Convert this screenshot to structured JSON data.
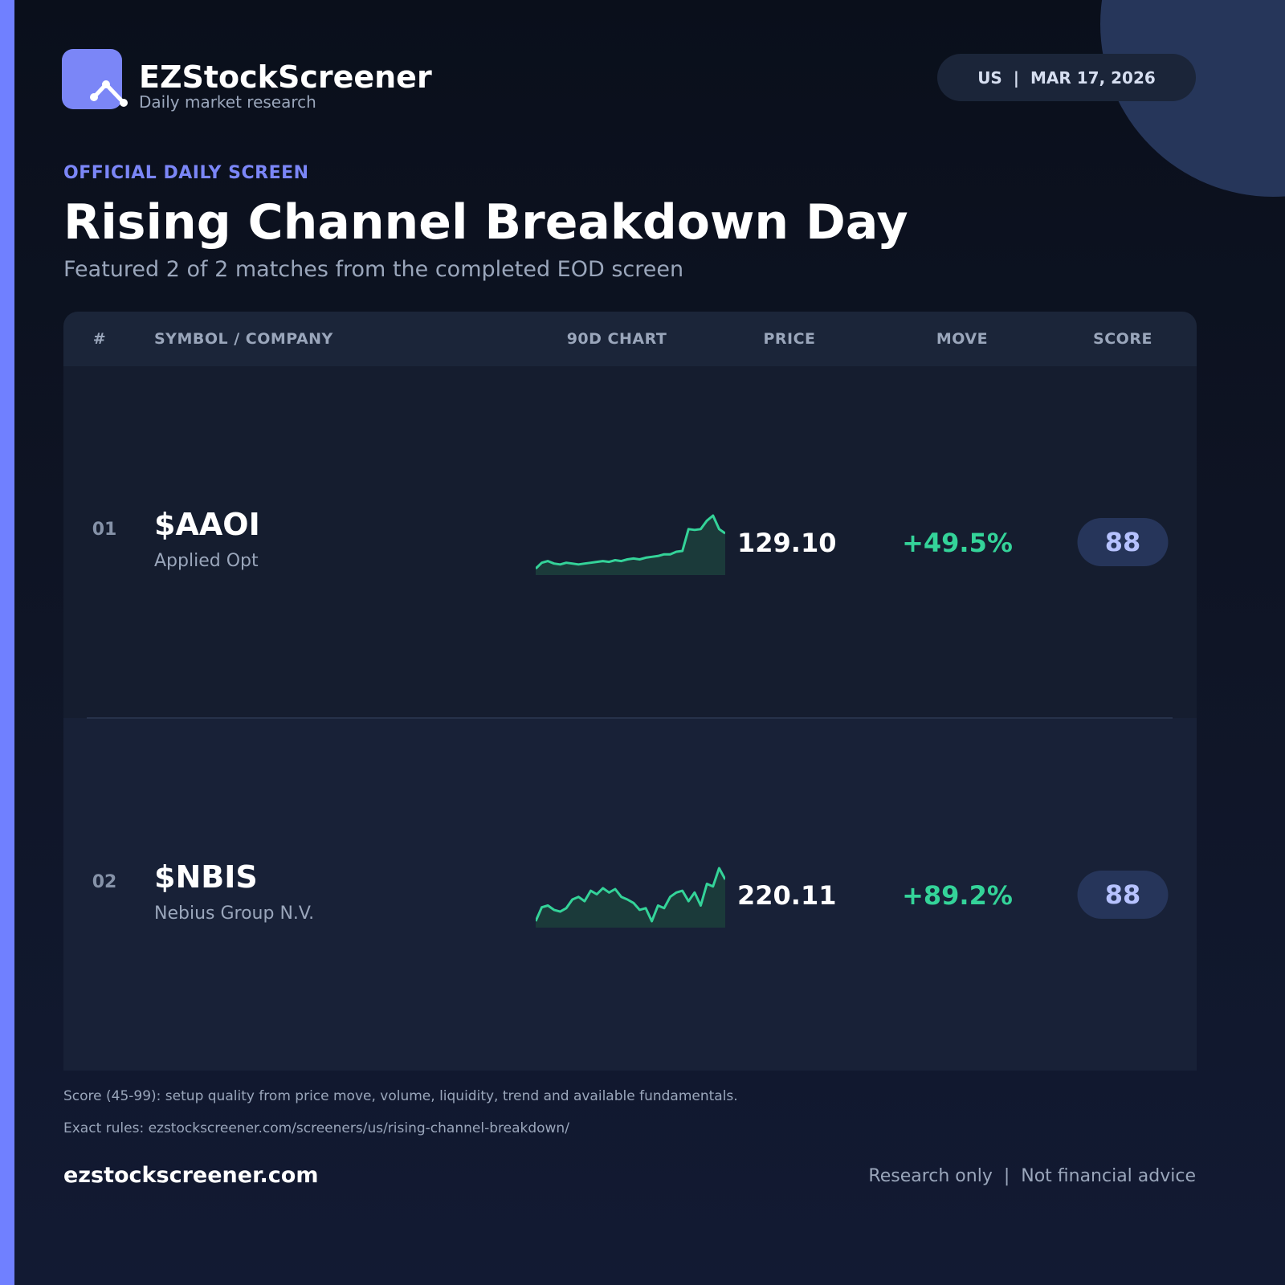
{
  "header": {
    "brand": "EZStockScreener",
    "tagline": "Daily market research",
    "badge": "US  |  MAR 17, 2026"
  },
  "hero": {
    "kicker": "OFFICIAL DAILY SCREEN",
    "title": "Rising Channel Breakdown Day",
    "subtitle": "Featured 2 of 2 matches from the completed EOD screen"
  },
  "table": {
    "columns": [
      "#",
      "SYMBOL / COMPANY",
      "90D CHART",
      "PRICE",
      "MOVE",
      "SCORE"
    ],
    "rows": [
      {
        "rank": "01",
        "symbol": "$AAOI",
        "company": "Applied Opt",
        "price": "129.10",
        "move": "+49.5%",
        "score": "88",
        "sparkline": [
          62,
          73.2,
          76.4,
          71.6,
          70,
          73.2,
          71.6,
          70,
          71.6,
          73.2,
          74.8,
          76.4,
          74.8,
          78,
          76.4,
          79.6,
          81.2,
          79.6,
          82.8,
          84.4,
          86,
          89.2,
          89.2,
          94,
          95.6,
          137.2,
          135.6,
          137.2,
          153.2,
          162.8,
          137.2,
          129.1
        ]
      },
      {
        "rank": "02",
        "symbol": "$NBIS",
        "company": "Nebius Group N.V.",
        "price": "220.11",
        "move": "+89.2%",
        "score": "88",
        "sparkline": [
          100,
          140,
          145,
          132.5,
          127.5,
          137.5,
          162.5,
          170,
          157.5,
          187.5,
          177.5,
          195,
          182.5,
          192.5,
          170,
          162.5,
          152.5,
          132.5,
          137.5,
          100,
          145,
          137.5,
          170,
          182.5,
          187.5,
          157.5,
          182.5,
          145,
          207.5,
          200,
          252.5,
          220.11
        ]
      }
    ]
  },
  "footer": {
    "notes": [
      "Score (45-99): setup quality from price move, volume, liquidity, trend and available fundamentals.",
      "Exact rules: ezstockscreener.com/screeners/us/rising-channel-breakdown/"
    ],
    "domain": "ezstockscreener.com",
    "disclaimer": "Research only  |  Not financial advice"
  }
}
